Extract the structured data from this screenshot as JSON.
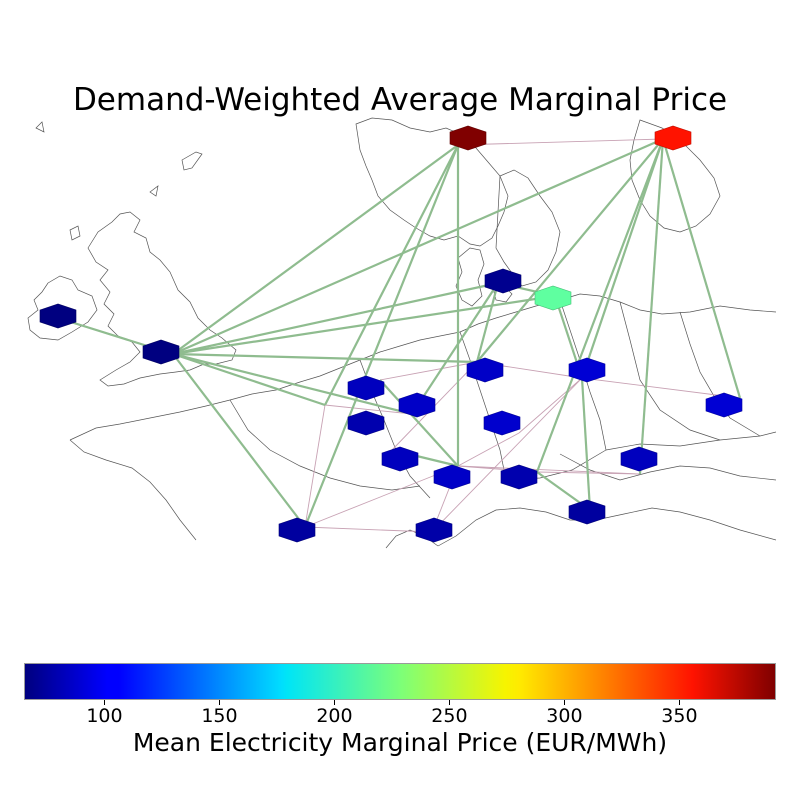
{
  "title": "Demand-Weighted Average Marginal Price",
  "colorbar": {
    "label": "Mean Electricity Marginal Price (EUR/MWh)",
    "min": 65,
    "max": 392,
    "colormap": "jet",
    "ticks": [
      "100",
      "150",
      "200",
      "250",
      "300",
      "350"
    ]
  },
  "colors": {
    "hvdc_link": "#8fbc8f",
    "ac_line": "#c8a2b4",
    "coastline": "#555555"
  },
  "nodes": [
    {
      "id": "n1",
      "price": 392
    },
    {
      "id": "n2",
      "price": 345
    },
    {
      "id": "n3",
      "price": 65
    },
    {
      "id": "n4",
      "price": 65
    },
    {
      "id": "n5",
      "price": 70
    },
    {
      "id": "n6",
      "price": 218
    },
    {
      "id": "n7",
      "price": 85
    },
    {
      "id": "n8",
      "price": 88
    },
    {
      "id": "n9",
      "price": 88
    },
    {
      "id": "n10",
      "price": 80
    },
    {
      "id": "n11",
      "price": 88
    },
    {
      "id": "n12",
      "price": 75
    },
    {
      "id": "n13",
      "price": 92
    },
    {
      "id": "n14",
      "price": 92
    },
    {
      "id": "n15",
      "price": 90
    },
    {
      "id": "n16",
      "price": 80
    },
    {
      "id": "n17",
      "price": 85
    },
    {
      "id": "n18",
      "price": 75
    },
    {
      "id": "n19",
      "price": 85
    },
    {
      "id": "n20",
      "price": 78
    }
  ],
  "hvdc_links": [
    [
      "n1",
      "n4"
    ],
    [
      "n1",
      "n10"
    ],
    [
      "n1",
      "n11"
    ],
    [
      "n1",
      "n12"
    ],
    [
      "n2",
      "n4"
    ],
    [
      "n2",
      "n9"
    ],
    [
      "n2",
      "n13"
    ],
    [
      "n2",
      "n16"
    ],
    [
      "n2",
      "n14"
    ],
    [
      "n2",
      "n19"
    ],
    [
      "n3",
      "n4"
    ],
    [
      "n4",
      "n5"
    ],
    [
      "n4",
      "n6"
    ],
    [
      "n4",
      "n9"
    ],
    [
      "n4",
      "n8"
    ],
    [
      "n4",
      "n10"
    ],
    [
      "n4",
      "n12"
    ],
    [
      "n5",
      "n9"
    ],
    [
      "n5",
      "n8"
    ],
    [
      "n6",
      "n13"
    ],
    [
      "n13",
      "n18"
    ],
    [
      "n16",
      "n18"
    ],
    [
      "n11",
      "n7"
    ],
    [
      "n17",
      "n11"
    ],
    [
      "n5",
      "n6"
    ]
  ],
  "ac_links": [
    [
      "n1",
      "n2"
    ],
    [
      "n9",
      "n13"
    ],
    [
      "n13",
      "n14"
    ],
    [
      "n9",
      "n17"
    ],
    [
      "n17",
      "n11"
    ],
    [
      "n11",
      "n16"
    ],
    [
      "n11",
      "n19"
    ],
    [
      "n11",
      "n20"
    ],
    [
      "n20",
      "n12"
    ],
    [
      "n12",
      "n11"
    ],
    [
      "n16",
      "n18"
    ],
    [
      "n19",
      "n16"
    ],
    [
      "n15",
      "n11"
    ],
    [
      "n15",
      "n13"
    ],
    [
      "n13",
      "n20"
    ],
    [
      "n8",
      "n10"
    ],
    [
      "n10",
      "n12"
    ],
    [
      "n7",
      "n9"
    ]
  ]
}
